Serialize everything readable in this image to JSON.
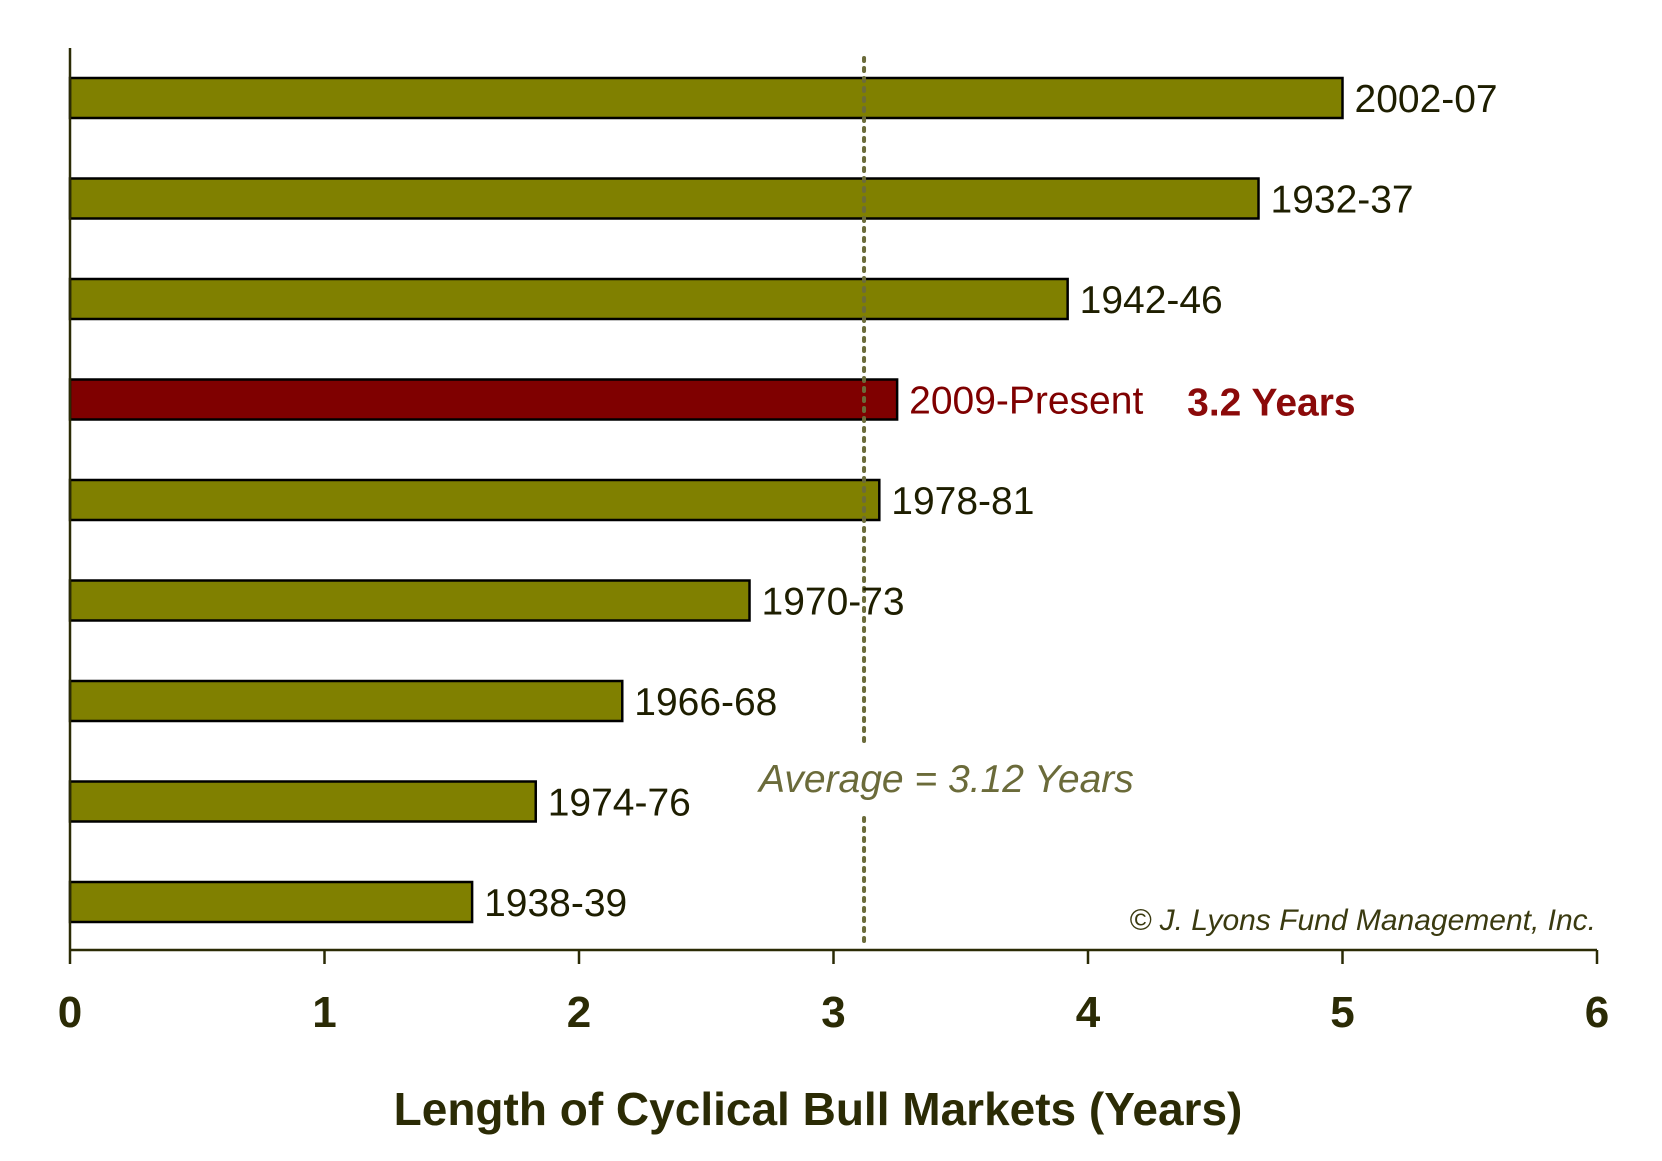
{
  "chart_data": {
    "type": "bar",
    "orientation": "horizontal",
    "categories": [
      "2002-07",
      "1932-37",
      "1942-46",
      "2009-Present",
      "1978-81",
      "1970-73",
      "1966-68",
      "1974-76",
      "1938-39"
    ],
    "values": [
      5.0,
      4.67,
      3.92,
      3.25,
      3.18,
      2.67,
      2.17,
      1.83,
      1.58
    ],
    "xlabel": "Length of Cyclical Bull Markets (Years)",
    "ylabel": "",
    "xlim": [
      0,
      6
    ],
    "xticks": [
      "0",
      "1",
      "2",
      "3",
      "4",
      "5",
      "6"
    ],
    "grid": false,
    "legend": "none",
    "highlight": {
      "category": "2009-Present",
      "value_label": "3.2 Years",
      "color": "#7f0000"
    },
    "reference_line": {
      "value": 3.12,
      "label": "Average = 3.12 Years",
      "style": "dotted",
      "color": "#6b6b3a"
    },
    "annotation": "© J. Lyons Fund Management, Inc.",
    "colors": {
      "bar": "#808000",
      "bar_border": "#000000",
      "axis": "#2b2b05"
    }
  }
}
